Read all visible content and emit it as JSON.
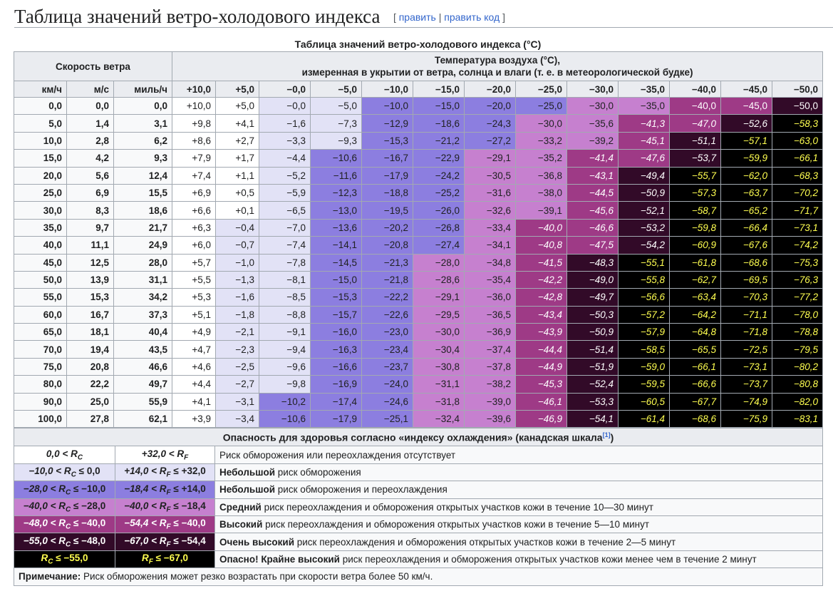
{
  "heading": {
    "title": "Таблица значений ветро-холодового индекса",
    "edit_open": "[",
    "edit": "править",
    "edit_sep": "|",
    "edit_code": "править код",
    "edit_close": "]"
  },
  "table": {
    "caption": "Таблица значений ветро-холодового индекса (°C)",
    "wind_header": "Скорость ветра",
    "temp_header_line1": "Температура воздуха (°C),",
    "temp_header_line2": "измеренная в укрытии от ветра, солнца и влаги (т. е. в метеорологической будке)",
    "unit_headers": [
      "км/ч",
      "м/с",
      "миль/ч"
    ],
    "temps": [
      "+10,0",
      "+5,0",
      "−0,0",
      "−5,0",
      "−10,0",
      "−15,0",
      "−20,0",
      "−25,0",
      "−30,0",
      "−35,0",
      "−40,0",
      "−45,0",
      "−50,0"
    ],
    "rows": [
      {
        "kmh": "0,0",
        "ms": "0,0",
        "mph": "0,0",
        "v": [
          "+10,0",
          "+5,0",
          "−0,0",
          "−5,0",
          "−10,0",
          "−15,0",
          "−20,0",
          "−25,0",
          "−30,0",
          "−35,0",
          "−40,0",
          "−45,0",
          "−50,0"
        ]
      },
      {
        "kmh": "5,0",
        "ms": "1,4",
        "mph": "3,1",
        "v": [
          "+9,8",
          "+4,1",
          "−1,6",
          "−7,3",
          "−12,9",
          "−18,6",
          "−24,3",
          "−30,0",
          "−35,6",
          "−41,3",
          "−47,0",
          "−52,6",
          "−58,3"
        ]
      },
      {
        "kmh": "10,0",
        "ms": "2,8",
        "mph": "6,2",
        "v": [
          "+8,6",
          "+2,7",
          "−3,3",
          "−9,3",
          "−15,3",
          "−21,2",
          "−27,2",
          "−33,2",
          "−39,2",
          "−45,1",
          "−51,1",
          "−57,1",
          "−63,0"
        ]
      },
      {
        "kmh": "15,0",
        "ms": "4,2",
        "mph": "9,3",
        "v": [
          "+7,9",
          "+1,7",
          "−4,4",
          "−10,6",
          "−16,7",
          "−22,9",
          "−29,1",
          "−35,2",
          "−41,4",
          "−47,6",
          "−53,7",
          "−59,9",
          "−66,1"
        ]
      },
      {
        "kmh": "20,0",
        "ms": "5,6",
        "mph": "12,4",
        "v": [
          "+7,4",
          "+1,1",
          "−5,2",
          "−11,6",
          "−17,9",
          "−24,2",
          "−30,5",
          "−36,8",
          "−43,1",
          "−49,4",
          "−55,7",
          "−62,0",
          "−68,3"
        ]
      },
      {
        "kmh": "25,0",
        "ms": "6,9",
        "mph": "15,5",
        "v": [
          "+6,9",
          "+0,5",
          "−5,9",
          "−12,3",
          "−18,8",
          "−25,2",
          "−31,6",
          "−38,0",
          "−44,5",
          "−50,9",
          "−57,3",
          "−63,7",
          "−70,2"
        ]
      },
      {
        "kmh": "30,0",
        "ms": "8,3",
        "mph": "18,6",
        "v": [
          "+6,6",
          "+0,1",
          "−6,5",
          "−13,0",
          "−19,5",
          "−26,0",
          "−32,6",
          "−39,1",
          "−45,6",
          "−52,1",
          "−58,7",
          "−65,2",
          "−71,7"
        ]
      },
      {
        "kmh": "35,0",
        "ms": "9,7",
        "mph": "21,7",
        "v": [
          "+6,3",
          "−0,4",
          "−7,0",
          "−13,6",
          "−20,2",
          "−26,8",
          "−33,4",
          "−40,0",
          "−46,6",
          "−53,2",
          "−59,8",
          "−66,4",
          "−73,1"
        ]
      },
      {
        "kmh": "40,0",
        "ms": "11,1",
        "mph": "24,9",
        "v": [
          "+6,0",
          "−0,7",
          "−7,4",
          "−14,1",
          "−20,8",
          "−27,4",
          "−34,1",
          "−40,8",
          "−47,5",
          "−54,2",
          "−60,9",
          "−67,6",
          "−74,2"
        ]
      },
      {
        "kmh": "45,0",
        "ms": "12,5",
        "mph": "28,0",
        "v": [
          "+5,7",
          "−1,0",
          "−7,8",
          "−14,5",
          "−21,3",
          "−28,0",
          "−34,8",
          "−41,5",
          "−48,3",
          "−55,1",
          "−61,8",
          "−68,6",
          "−75,3"
        ]
      },
      {
        "kmh": "50,0",
        "ms": "13,9",
        "mph": "31,1",
        "v": [
          "+5,5",
          "−1,3",
          "−8,1",
          "−15,0",
          "−21,8",
          "−28,6",
          "−35,4",
          "−42,2",
          "−49,0",
          "−55,8",
          "−62,7",
          "−69,5",
          "−76,3"
        ]
      },
      {
        "kmh": "55,0",
        "ms": "15,3",
        "mph": "34,2",
        "v": [
          "+5,3",
          "−1,6",
          "−8,5",
          "−15,3",
          "−22,2",
          "−29,1",
          "−36,0",
          "−42,8",
          "−49,7",
          "−56,6",
          "−63,4",
          "−70,3",
          "−77,2"
        ]
      },
      {
        "kmh": "60,0",
        "ms": "16,7",
        "mph": "37,3",
        "v": [
          "+5,1",
          "−1,8",
          "−8,8",
          "−15,7",
          "−22,6",
          "−29,5",
          "−36,5",
          "−43,4",
          "−50,3",
          "−57,2",
          "−64,2",
          "−71,1",
          "−78,0"
        ]
      },
      {
        "kmh": "65,0",
        "ms": "18,1",
        "mph": "40,4",
        "v": [
          "+4,9",
          "−2,1",
          "−9,1",
          "−16,0",
          "−23,0",
          "−30,0",
          "−36,9",
          "−43,9",
          "−50,9",
          "−57,9",
          "−64,8",
          "−71,8",
          "−78,8"
        ]
      },
      {
        "kmh": "70,0",
        "ms": "19,4",
        "mph": "43,5",
        "v": [
          "+4,7",
          "−2,3",
          "−9,4",
          "−16,3",
          "−23,4",
          "−30,4",
          "−37,4",
          "−44,4",
          "−51,4",
          "−58,5",
          "−65,5",
          "−72,5",
          "−79,5"
        ]
      },
      {
        "kmh": "75,0",
        "ms": "20,8",
        "mph": "46,6",
        "v": [
          "+4,6",
          "−2,5",
          "−9,6",
          "−16,6",
          "−23,7",
          "−30,8",
          "−37,8",
          "−44,9",
          "−51,9",
          "−59,0",
          "−66,1",
          "−73,1",
          "−80,2"
        ]
      },
      {
        "kmh": "80,0",
        "ms": "22,2",
        "mph": "49,7",
        "v": [
          "+4,4",
          "−2,7",
          "−9,8",
          "−16,9",
          "−24,0",
          "−31,1",
          "−38,2",
          "−45,3",
          "−52,4",
          "−59,5",
          "−66,6",
          "−73,7",
          "−80,8"
        ]
      },
      {
        "kmh": "90,0",
        "ms": "25,0",
        "mph": "55,9",
        "v": [
          "+4,1",
          "−3,1",
          "−10,2",
          "−17,4",
          "−24,6",
          "−31,8",
          "−39,0",
          "−46,1",
          "−53,3",
          "−60,5",
          "−67,7",
          "−74,9",
          "−82,0"
        ]
      },
      {
        "kmh": "100,0",
        "ms": "27,8",
        "mph": "62,1",
        "v": [
          "+3,9",
          "−3,4",
          "−10,6",
          "−17,9",
          "−25,1",
          "−32,4",
          "−39,6",
          "−46,9",
          "−54,1",
          "−61,4",
          "−68,6",
          "−75,9",
          "−83,1"
        ]
      }
    ]
  },
  "risk": {
    "header": "Опасность для здоровья согласно «индексу охлаждения» (канадская шкала",
    "header_ref": "[1]",
    "header_close": ")",
    "levels": [
      {
        "rc": "0,0 < R",
        "rc_sub": "C",
        "rc_tail": "",
        "rf": "+32,0 < R",
        "rf_sub": "F",
        "rf_tail": "",
        "bold": "",
        "text": "Риск обморожения или переохлаждения отсутствует",
        "color": "#ffffff"
      },
      {
        "rc": "−10,0 < R",
        "rc_sub": "C",
        "rc_tail": " ≤ 0,0",
        "rf": "+14,0 < R",
        "rf_sub": "F",
        "rf_tail": " ≤ +32,0",
        "bold": "Небольшой",
        "text": " риск обморожения",
        "color": "#e2e2f6"
      },
      {
        "rc": "−28,0 < R",
        "rc_sub": "C",
        "rc_tail": " ≤ −10,0",
        "rf": "−18,4 < R",
        "rf_sub": "F",
        "rf_tail": " ≤ +14,0",
        "bold": "Небольшой",
        "text": " риск обморожения и переохлаждения",
        "color": "#8c7ee0"
      },
      {
        "rc": "−40,0 < R",
        "rc_sub": "C",
        "rc_tail": " ≤ −28,0",
        "rf": "−40,0 < R",
        "rf_sub": "F",
        "rf_tail": " ≤ −18,4",
        "bold": "Средний",
        "text": " риск переохлаждения и обморожения открытых участков кожи в течение 10—30 минут",
        "color": "#c680cf"
      },
      {
        "rc": "−48,0 < R",
        "rc_sub": "C",
        "rc_tail": " ≤ −40,0",
        "rf": "−54,4 < R",
        "rf_sub": "F",
        "rf_tail": " ≤ −40,0",
        "bold": "Высокий",
        "text": " риск переохлаждения и обморожения открытых участков кожи в течение 5—10 минут",
        "color": "#9e3a86"
      },
      {
        "rc": "−55,0 < R",
        "rc_sub": "C",
        "rc_tail": " ≤ −48,0",
        "rf": "−67,0 < R",
        "rf_sub": "F",
        "rf_tail": " ≤ −54,4",
        "bold": "Очень высокий",
        "text": " риск переохлаждения и обморожения открытых участков кожи в течение 2—5 минут",
        "color": "#320a28"
      },
      {
        "rc": "R",
        "rc_sub": "C",
        "rc_tail": " ≤ −55,0",
        "rf": "R",
        "rf_sub": "F",
        "rf_tail": " ≤ −67,0",
        "bold": "Опасно! Крайне высокий",
        "text": " риск переохлаждения и обморожения открытых участков кожи менее чем в течение 2 минут",
        "color": "#000000"
      }
    ],
    "note_label": "Примечание:",
    "note_text": " Риск обморожения может резко возрастать при скорости ветра более 50 км/ч."
  }
}
